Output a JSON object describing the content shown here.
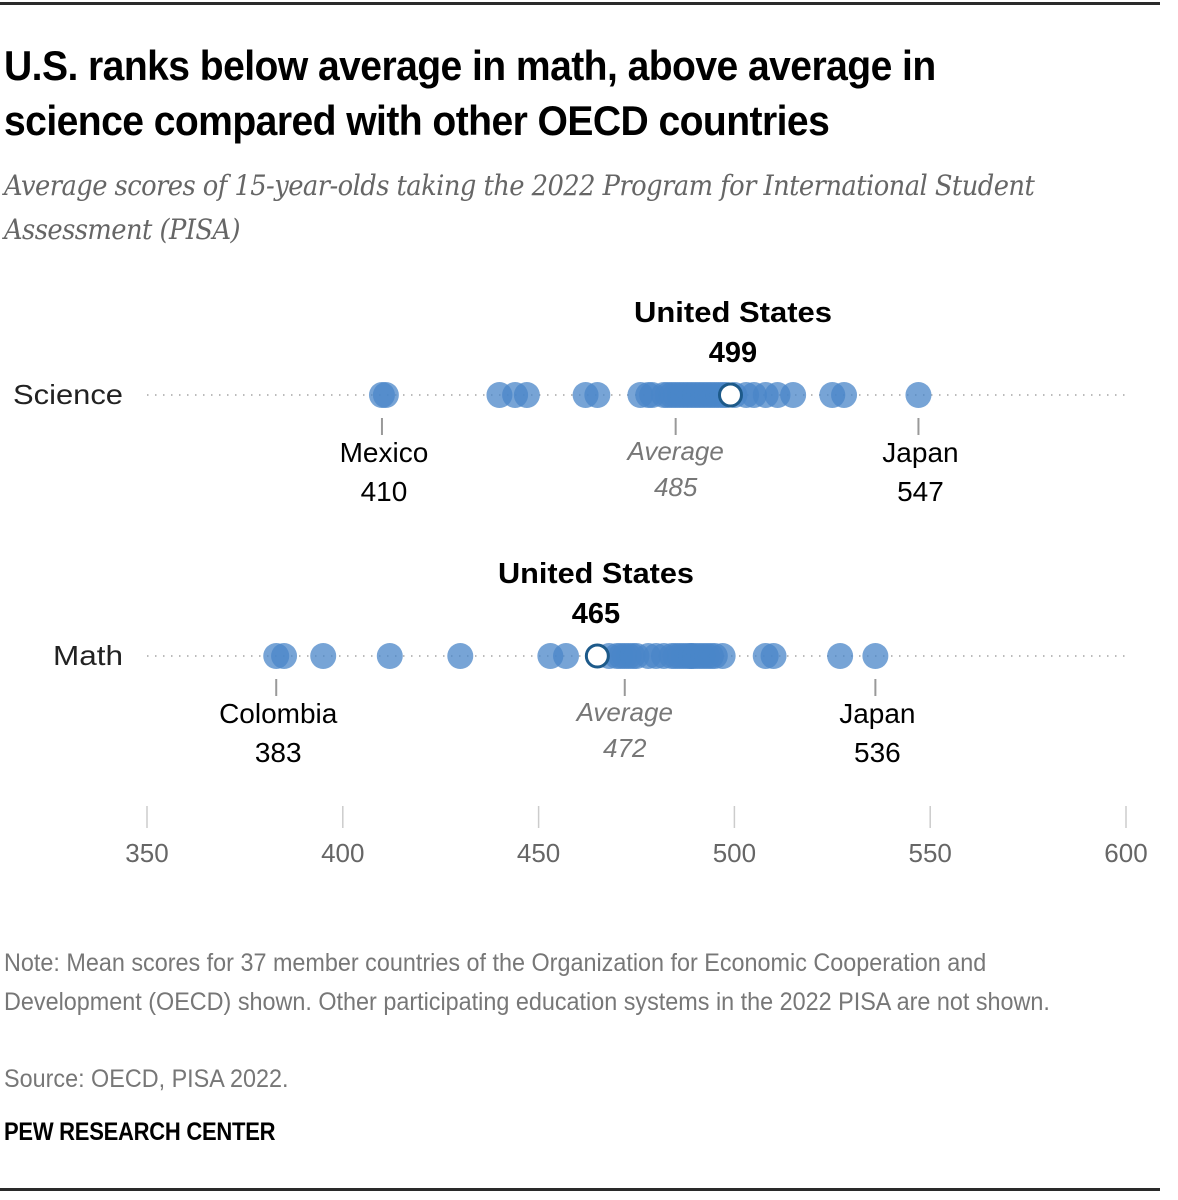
{
  "title": "U.S. ranks below average in math, above average in science compared with other OECD countries",
  "subtitle": "Average scores of 15-year-olds taking the 2022 Program for International Student Assessment (PISA)",
  "note": "Note: Mean scores for 37 member countries of the Organization for Economic Cooperation and Development (OECD) shown. Other participating education systems in the 2022 PISA are not shown.",
  "source": "Source: OECD, PISA 2022.",
  "brand": "PEW RESEARCH CENTER",
  "colors": {
    "dot": "#4a86c8",
    "highlight_stroke": "#1d5a8a",
    "highlight_fill": "#ffffff",
    "guide": "#bbbbbb",
    "label": "#000000",
    "average_label": "#777777",
    "tick_label": "#666666"
  },
  "chart_data": {
    "type": "scatter",
    "subtype": "dot-strip",
    "title": "U.S. ranks below average in math, above average in science compared with other OECD countries",
    "xlabel": "",
    "ylabel": "",
    "xlim": [
      350,
      600
    ],
    "xticks": [
      350,
      400,
      450,
      500,
      550,
      600
    ],
    "xtick_labels": [
      "350",
      "400",
      "450",
      "500",
      "550",
      "600"
    ],
    "grid": false,
    "legend": "none",
    "rows": [
      {
        "name": "Science",
        "values": [
          410,
          411,
          440,
          444,
          447,
          462,
          465,
          476,
          478,
          479,
          482,
          483,
          484,
          485,
          486,
          487,
          488,
          489,
          490,
          491,
          492,
          493,
          494,
          495,
          496,
          497,
          498,
          500,
          503,
          505,
          508,
          511,
          515,
          525,
          528,
          547
        ],
        "highlight": {
          "name": "United States",
          "value": 499,
          "label": "499"
        },
        "average": {
          "label": "Average",
          "value": 485,
          "display": "485"
        },
        "min_label": {
          "name": "Mexico",
          "value": 410,
          "display": "410"
        },
        "max_label": {
          "name": "Japan",
          "value": 547,
          "display": "547"
        }
      },
      {
        "name": "Math",
        "values": [
          383,
          385,
          395,
          412,
          430,
          453,
          457,
          468,
          470,
          471,
          472,
          473,
          474,
          475,
          478,
          480,
          482,
          484,
          485,
          486,
          487,
          488,
          489,
          489,
          490,
          491,
          492,
          493,
          494,
          495,
          497,
          508,
          510,
          527,
          536
        ],
        "highlight": {
          "name": "United States",
          "value": 465,
          "label": "465"
        },
        "average": {
          "label": "Average",
          "value": 472,
          "display": "472"
        },
        "min_label": {
          "name": "Colombia",
          "value": 383,
          "display": "383"
        },
        "max_label": {
          "name": "Japan",
          "value": 536,
          "display": "536"
        }
      }
    ]
  }
}
